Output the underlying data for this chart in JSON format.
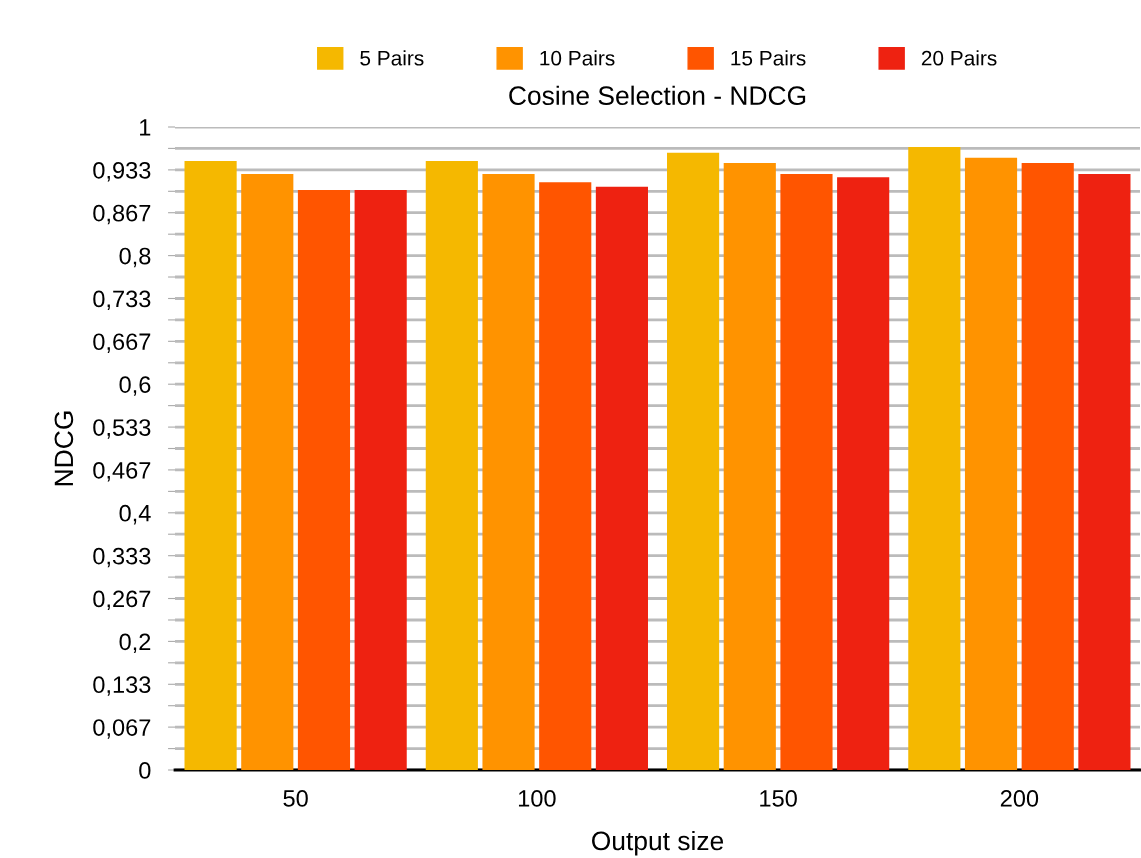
{
  "chart_data": {
    "type": "bar",
    "title": "Cosine Selection - NDCG",
    "xlabel": "Output size",
    "ylabel": "NDCG",
    "categories": [
      "50",
      "100",
      "150",
      "200"
    ],
    "series": [
      {
        "name": "5 Pairs",
        "color": "#f5b800",
        "values": [
          0.947,
          0.947,
          0.96,
          0.969
        ]
      },
      {
        "name": "10 Pairs",
        "color": "#ff9300",
        "values": [
          0.927,
          0.927,
          0.944,
          0.952
        ]
      },
      {
        "name": "15 Pairs",
        "color": "#ff5500",
        "values": [
          0.902,
          0.914,
          0.927,
          0.944
        ]
      },
      {
        "name": "20 Pairs",
        "color": "#ee2211",
        "values": [
          0.902,
          0.907,
          0.922,
          0.927
        ]
      }
    ],
    "ylim": [
      0,
      1
    ],
    "yticks": [
      0,
      {
        "value": 0.0333,
        "label": null
      },
      {
        "value": 0.0667,
        "label": "0,067"
      },
      {
        "value": 0.1,
        "label": null
      },
      {
        "value": 0.1333,
        "label": "0,133"
      },
      {
        "value": 0.1667,
        "label": null
      },
      {
        "value": 0.2,
        "label": "0,2"
      },
      {
        "value": 0.2333,
        "label": null
      },
      {
        "value": 0.2667,
        "label": "0,267"
      },
      {
        "value": 0.3,
        "label": null
      },
      {
        "value": 0.3333,
        "label": "0,333"
      },
      {
        "value": 0.3667,
        "label": null
      },
      {
        "value": 0.4,
        "label": "0,4"
      },
      {
        "value": 0.4333,
        "label": null
      },
      {
        "value": 0.4667,
        "label": "0,467"
      },
      {
        "value": 0.5,
        "label": null
      },
      {
        "value": 0.5333,
        "label": "0,533"
      },
      {
        "value": 0.5667,
        "label": null
      },
      {
        "value": 0.6,
        "label": "0,6"
      },
      {
        "value": 0.6333,
        "label": null
      },
      {
        "value": 0.6667,
        "label": "0,667"
      },
      {
        "value": 0.7,
        "label": null
      },
      {
        "value": 0.7333,
        "label": "0,733"
      },
      {
        "value": 0.7667,
        "label": null
      },
      {
        "value": 0.8,
        "label": "0,8"
      },
      {
        "value": 0.8333,
        "label": null
      },
      {
        "value": 0.8667,
        "label": "0,867"
      },
      {
        "value": 0.9,
        "label": null
      },
      {
        "value": 0.9333,
        "label": "0,933"
      },
      {
        "value": 0.9667,
        "label": null
      },
      1
    ],
    "grid": "y",
    "legend": "top"
  }
}
